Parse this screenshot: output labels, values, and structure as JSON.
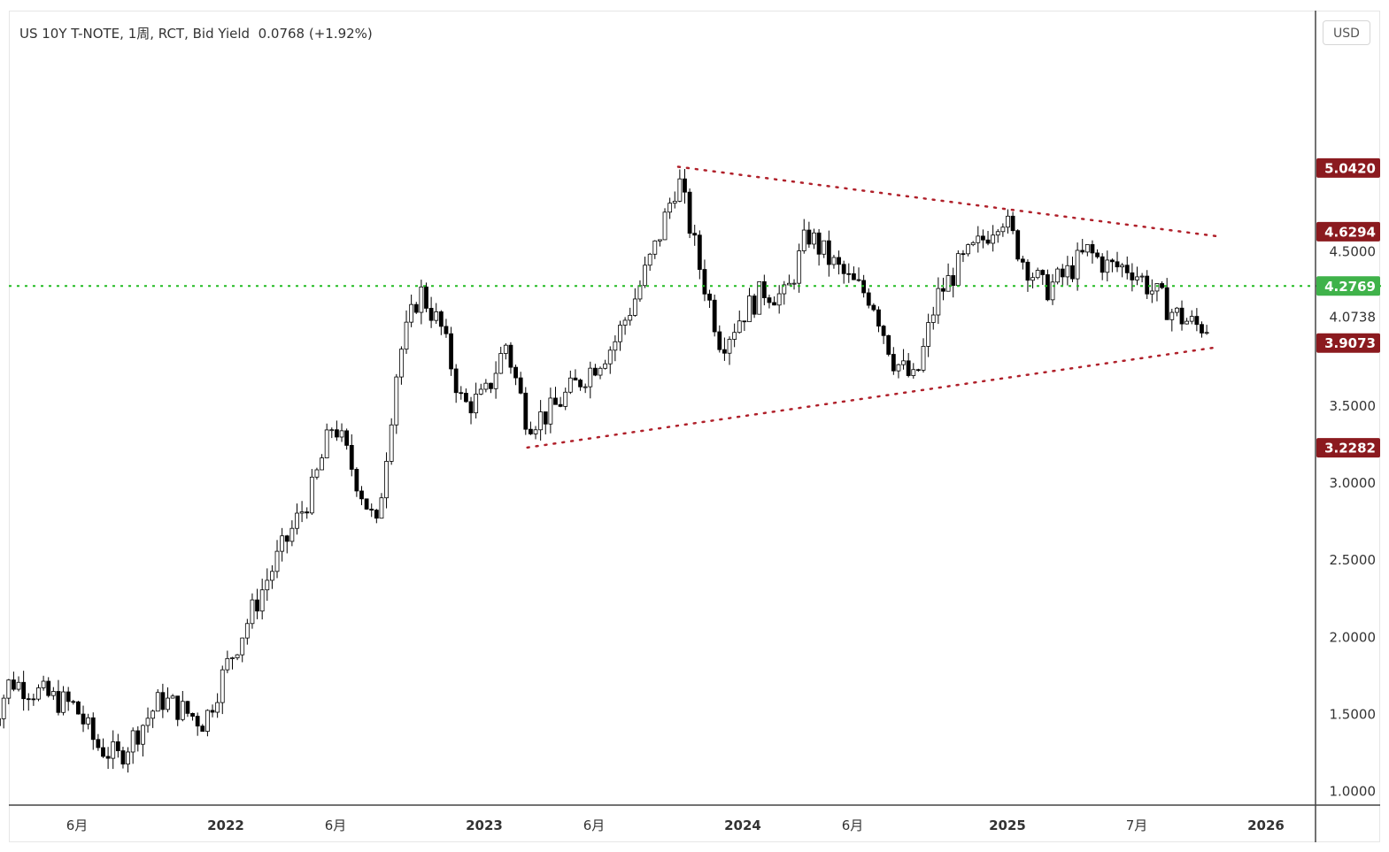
{
  "header": {
    "title": "US 10Y T-NOTE, 1周, RCT, Bid Yield  0.0768 (+1.92%)",
    "currency_button": "USD"
  },
  "colors": {
    "up_candle": "#ffffff",
    "down_candle": "#000000",
    "wick": "#000000",
    "trendline": "#b0202a",
    "support_line": "#22bb22",
    "red_tag": "#8b1a1f",
    "green_tag": "#3fb24a"
  },
  "chart_data": {
    "type": "candlestick",
    "title": "US 10Y T-NOTE, 1周, RCT, Bid Yield",
    "ylim": [
      0.7,
      5.85
    ],
    "x_labels": [
      "6月",
      "2022",
      "6月",
      "2023",
      "6月",
      "2024",
      "6月",
      "2025",
      "7月",
      "2026"
    ],
    "y_ticks": [
      "1.0000",
      "1.5000",
      "2.0000",
      "2.5000",
      "3.0000",
      "3.5000",
      "4.0738",
      "4.5000"
    ],
    "price_tags": [
      {
        "label": "5.0420",
        "value": 5.042,
        "color": "red"
      },
      {
        "label": "4.6294",
        "value": 4.6294,
        "color": "red"
      },
      {
        "label": "4.2769",
        "value": 4.2769,
        "color": "green"
      },
      {
        "label": "3.9073",
        "value": 3.9073,
        "color": "red"
      },
      {
        "label": "3.2282",
        "value": 3.2282,
        "color": "red"
      }
    ],
    "horizontal_line": {
      "value": 4.2769,
      "style": "dotted",
      "color": "green"
    },
    "trendlines": [
      {
        "name": "upper",
        "from": [
          "2023-10",
          5.05
        ],
        "to": [
          "2025-11",
          4.6
        ]
      },
      {
        "name": "lower",
        "from": [
          "2023-03",
          3.23
        ],
        "to": [
          "2025-11",
          3.88
        ]
      }
    ],
    "anchors": [
      [
        "2021-02",
        1.4
      ],
      [
        "2021-03",
        1.72
      ],
      [
        "2021-05",
        1.6
      ],
      [
        "2021-06",
        1.55
      ],
      [
        "2021-07",
        1.3
      ],
      [
        "2021-08",
        1.22
      ],
      [
        "2021-10",
        1.6
      ],
      [
        "2021-12",
        1.45
      ],
      [
        "2022-01",
        1.8
      ],
      [
        "2022-03",
        2.4
      ],
      [
        "2022-05",
        2.95
      ],
      [
        "2022-06",
        3.4
      ],
      [
        "2022-08",
        2.7
      ],
      [
        "2022-09",
        3.8
      ],
      [
        "2022-10",
        4.25
      ],
      [
        "2022-11",
        4.0
      ],
      [
        "2022-12",
        3.5
      ],
      [
        "2023-01",
        3.55
      ],
      [
        "2023-02",
        3.9
      ],
      [
        "2023-03",
        3.4
      ],
      [
        "2023-04",
        3.45
      ],
      [
        "2023-05",
        3.6
      ],
      [
        "2023-06",
        3.75
      ],
      [
        "2023-07",
        3.9
      ],
      [
        "2023-08",
        4.2
      ],
      [
        "2023-09",
        4.55
      ],
      [
        "2023-10",
        4.98
      ],
      [
        "2023-11",
        4.4
      ],
      [
        "2023-12",
        3.9
      ],
      [
        "2024-01",
        4.1
      ],
      [
        "2024-02",
        4.25
      ],
      [
        "2024-03",
        4.2
      ],
      [
        "2024-04",
        4.62
      ],
      [
        "2024-05",
        4.45
      ],
      [
        "2024-06",
        4.3
      ],
      [
        "2024-07",
        4.2
      ],
      [
        "2024-08",
        3.8
      ],
      [
        "2024-09",
        3.65
      ],
      [
        "2024-10",
        4.2
      ],
      [
        "2024-11",
        4.4
      ],
      [
        "2024-12",
        4.55
      ],
      [
        "2025-01",
        4.75
      ],
      [
        "2025-02",
        4.45
      ],
      [
        "2025-03",
        4.25
      ],
      [
        "2025-04",
        4.35
      ],
      [
        "2025-05",
        4.5
      ],
      [
        "2025-06",
        4.4
      ],
      [
        "2025-07",
        4.4
      ],
      [
        "2025-08",
        4.25
      ],
      [
        "2025-09",
        4.1
      ],
      [
        "2025-10",
        4.02
      ]
    ]
  }
}
